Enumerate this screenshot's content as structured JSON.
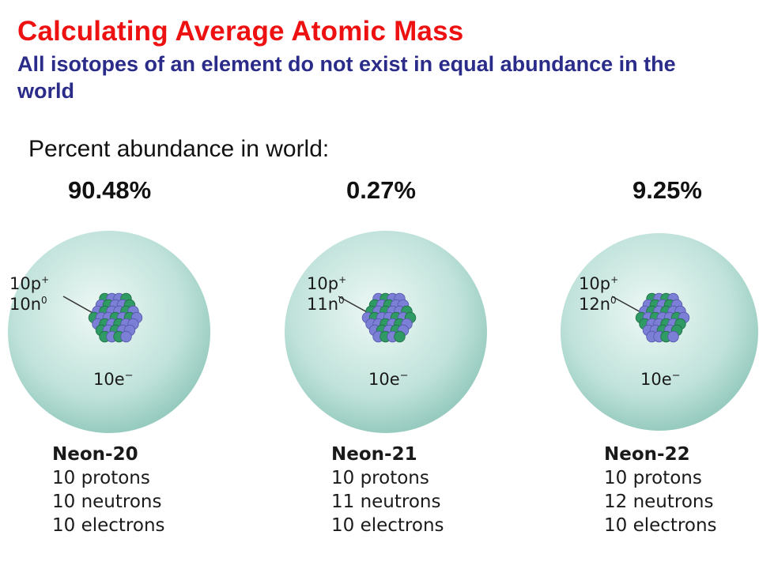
{
  "header": {
    "title": "Calculating Average Atomic Mass",
    "subtitle": "All isotopes of an element do not exist in equal abundance in the world"
  },
  "abundance_label": "Percent abundance in world:",
  "colors": {
    "title": "#ee1111",
    "subtitle": "#2b2b8a",
    "proton": "#7c7fd6",
    "neutron": "#2f9a64",
    "cloud": "#a9d6cc"
  },
  "isotopes": [
    {
      "percent": "90.48%",
      "protons_label": "10p",
      "protons_sup": "+",
      "neutrons_label": "10n",
      "neutrons_sup": "0",
      "electrons_label": "10e",
      "electrons_sup": "−",
      "name": "Neon-20",
      "line1": "10 protons",
      "line2": "10 neutrons",
      "line3": "10 electrons"
    },
    {
      "percent": "0.27%",
      "protons_label": "10p",
      "protons_sup": "+",
      "neutrons_label": "11n",
      "neutrons_sup": "0",
      "electrons_label": "10e",
      "electrons_sup": "−",
      "name": "Neon-21",
      "line1": "10 protons",
      "line2": "11 neutrons",
      "line3": "10 electrons"
    },
    {
      "percent": "9.25%",
      "protons_label": "10p",
      "protons_sup": "+",
      "neutrons_label": "12n",
      "neutrons_sup": "0",
      "electrons_label": "10e",
      "electrons_sup": "−",
      "name": "Neon-22",
      "line1": "10 protons",
      "line2": "12 neutrons",
      "line3": "10 electrons"
    }
  ]
}
